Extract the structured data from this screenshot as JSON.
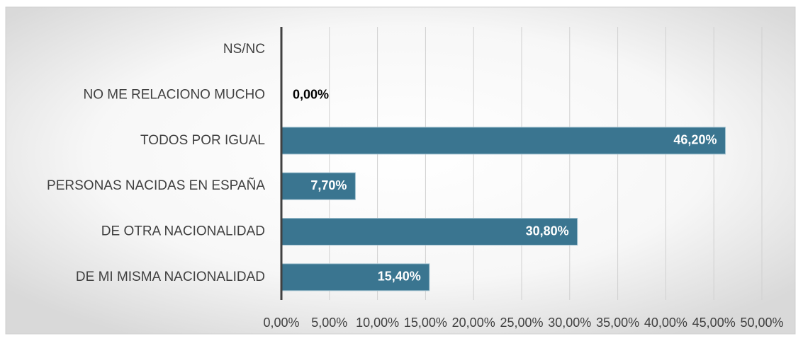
{
  "chart_data": {
    "type": "bar",
    "orientation": "horizontal",
    "categories": [
      "NS/NC",
      "NO ME RELACIONO MUCHO",
      "TODOS POR IGUAL",
      "PERSONAS NACIDAS EN ESPAÑA",
      "DE OTRA NACIONALIDAD",
      "DE MI MISMA NACIONALIDAD"
    ],
    "values": [
      null,
      0,
      46.2,
      7.7,
      30.8,
      15.4
    ],
    "value_labels": [
      null,
      "0,00%",
      "46,20%",
      "7,70%",
      "30,80%",
      "15,40%"
    ],
    "color": "#3a7590",
    "xlim": [
      0,
      50
    ],
    "xticks": [
      {
        "value": 0,
        "label": "0,00%"
      },
      {
        "value": 5,
        "label": "5,00%"
      },
      {
        "value": 10,
        "label": "10,00%"
      },
      {
        "value": 15,
        "label": "15,00%"
      },
      {
        "value": 20,
        "label": "20,00%"
      },
      {
        "value": 25,
        "label": "25,00%"
      },
      {
        "value": 30,
        "label": "30,00%"
      },
      {
        "value": 35,
        "label": "35,00%"
      },
      {
        "value": 40,
        "label": "40,00%"
      },
      {
        "value": 45,
        "label": "45,00%"
      },
      {
        "value": 50,
        "label": "50,00%"
      }
    ],
    "grid": true
  }
}
